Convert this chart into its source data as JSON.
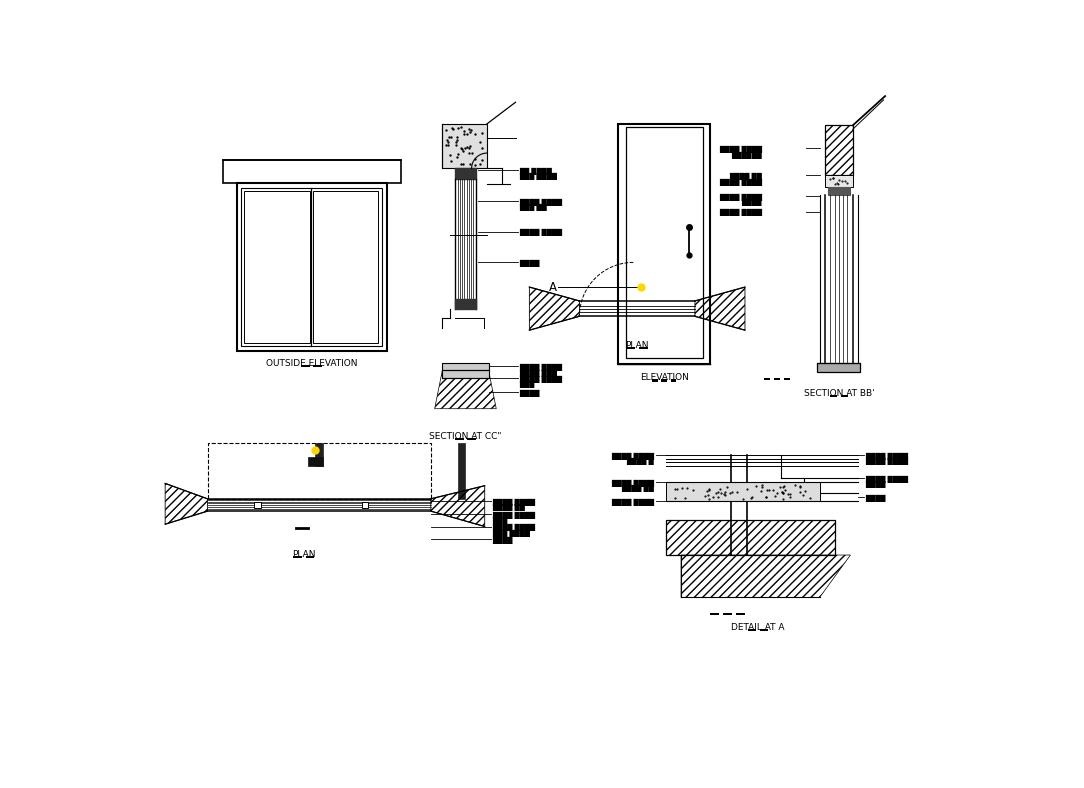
{
  "bg": "#ffffff",
  "lc": "#000000",
  "labels": {
    "outside_elevation": "OUTSIDE ELEVATION",
    "section_cc": "SECTION AT CC\"",
    "elevation": "ELEVATION",
    "section_bb": "SECTION AT BB'",
    "plan1": "PLAN",
    "plan2": "PLAN",
    "detail_a": "DETAIL AT A",
    "A": "A"
  },
  "fs_label": 6.5,
  "fs_ann": 4.8
}
